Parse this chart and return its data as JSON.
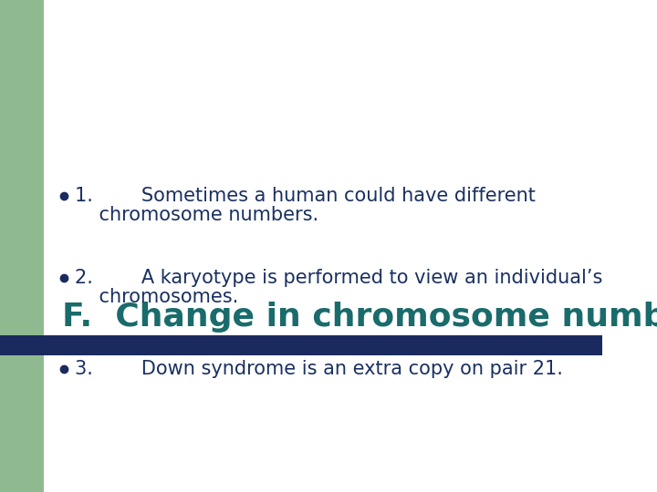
{
  "title": "F.  Change in chromosome number",
  "title_color": "#1a6b6b",
  "title_fontsize": 26,
  "bg_color": "#ffffff",
  "green_sidebar_color": "#8fba8f",
  "navy_bar_color": "#1a2a5e",
  "bullet_dot_color": "#1a2a5e",
  "bullet_text_color": "#1a3060",
  "bullet_fontsize": 15,
  "bullets": [
    {
      "line1": "1.        Sometimes a human could have different",
      "line2": "    chromosome numbers."
    },
    {
      "line1": "2.        A karyotype is performed to view an individual’s",
      "line2": "    chromosomes."
    },
    {
      "line1": "3.        Down syndrome is an extra copy on pair 21.",
      "line2": ""
    }
  ]
}
